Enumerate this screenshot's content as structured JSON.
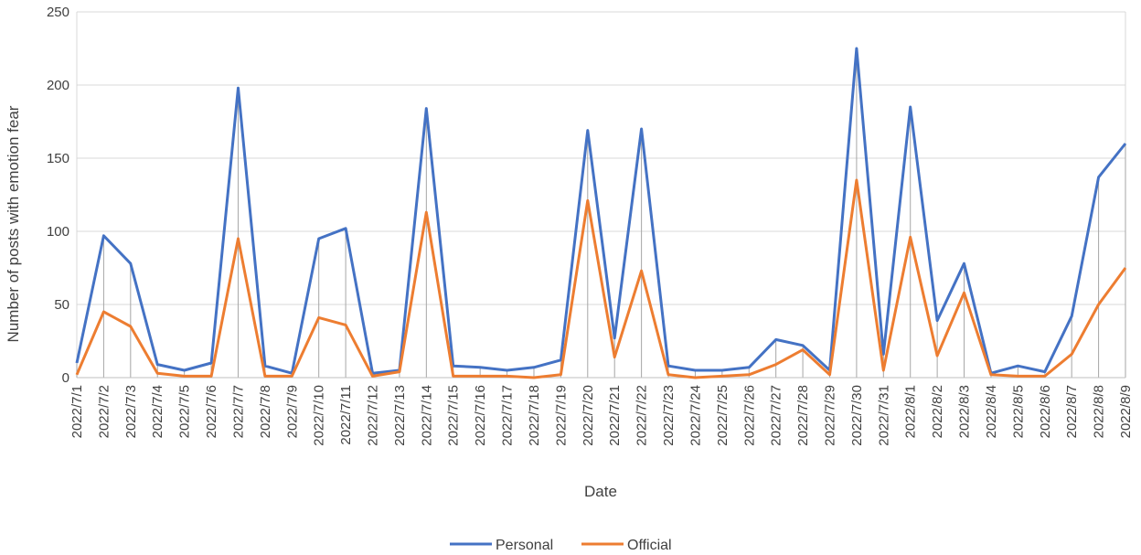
{
  "chart_data": {
    "type": "line",
    "xlabel": "Date",
    "ylabel": "Number of posts with emotion fear",
    "ylim": [
      0,
      250
    ],
    "yticks": [
      0,
      50,
      100,
      150,
      200,
      250
    ],
    "grid": true,
    "legend_position": "bottom",
    "categories": [
      "2022/7/1",
      "2022/7/2",
      "2022/7/3",
      "2022/7/4",
      "2022/7/5",
      "2022/7/6",
      "2022/7/7",
      "2022/7/8",
      "2022/7/9",
      "2022/7/10",
      "2022/7/11",
      "2022/7/12",
      "2022/7/13",
      "2022/7/14",
      "2022/7/15",
      "2022/7/16",
      "2022/7/17",
      "2022/7/18",
      "2022/7/19",
      "2022/7/20",
      "2022/7/21",
      "2022/7/22",
      "2022/7/23",
      "2022/7/24",
      "2022/7/25",
      "2022/7/26",
      "2022/7/27",
      "2022/7/28",
      "2022/7/29",
      "2022/7/30",
      "2022/7/31",
      "2022/8/1",
      "2022/8/2",
      "2022/8/3",
      "2022/8/4",
      "2022/8/5",
      "2022/8/6",
      "2022/8/7",
      "2022/8/8",
      "2022/8/9"
    ],
    "series": [
      {
        "name": "Personal",
        "color": "#4472C4",
        "values": [
          10,
          97,
          78,
          9,
          5,
          10,
          198,
          8,
          3,
          95,
          102,
          3,
          5,
          184,
          8,
          7,
          5,
          7,
          12,
          169,
          27,
          170,
          8,
          5,
          5,
          7,
          26,
          22,
          5,
          225,
          16,
          185,
          39,
          78,
          3,
          8,
          4,
          42,
          137,
          160
        ]
      },
      {
        "name": "Official",
        "color": "#ED7D31",
        "values": [
          2,
          45,
          35,
          3,
          1,
          1,
          95,
          1,
          1,
          41,
          36,
          1,
          4,
          113,
          1,
          1,
          1,
          0,
          2,
          121,
          14,
          73,
          2,
          0,
          1,
          2,
          9,
          19,
          2,
          135,
          5,
          96,
          15,
          58,
          2,
          1,
          1,
          16,
          50,
          75
        ]
      }
    ]
  }
}
